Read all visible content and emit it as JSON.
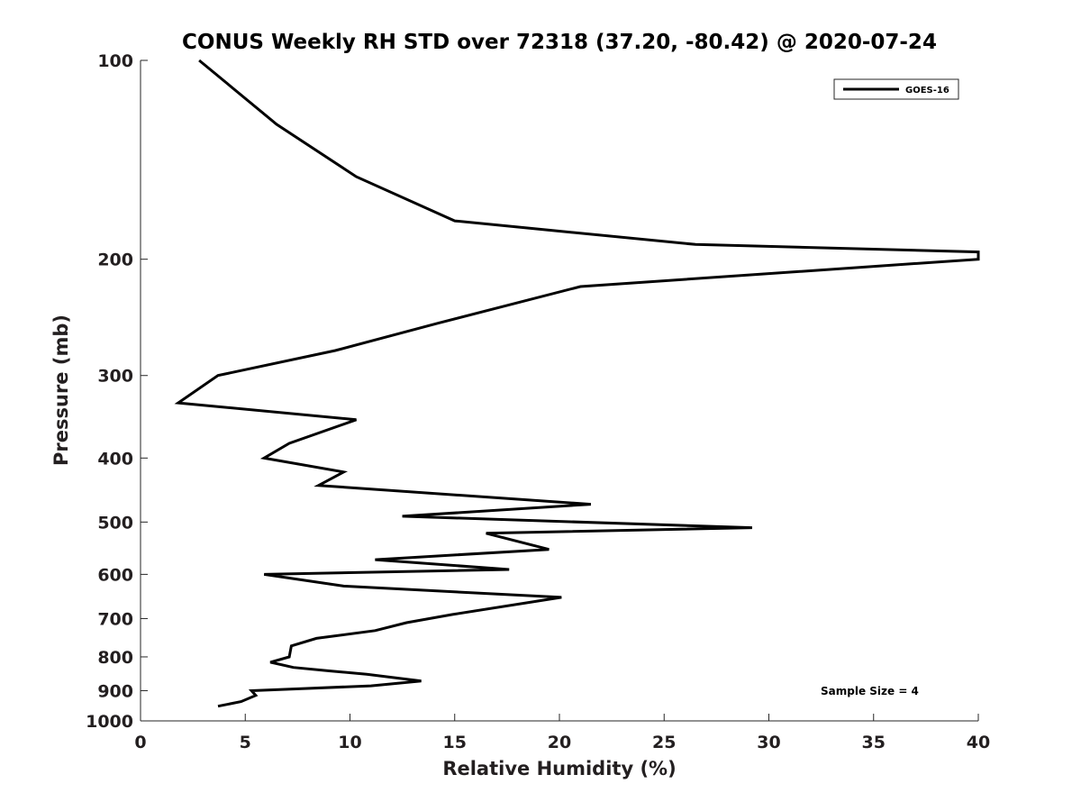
{
  "chart_data": {
    "type": "line",
    "title": "CONUS Weekly RH STD over 72318 (37.20, -80.42) @ 2020-07-24",
    "xlabel": "Relative Humidity (%)",
    "ylabel": "Pressure (mb)",
    "xlim": [
      0,
      40
    ],
    "ylim": [
      100,
      1000
    ],
    "y_scale": "log",
    "y_reversed": true,
    "grid": false,
    "legend_position": "top-right",
    "x_ticks": [
      "0",
      "5",
      "10",
      "15",
      "20",
      "25",
      "30",
      "35",
      "40"
    ],
    "y_ticks": [
      "100",
      "200",
      "300",
      "400",
      "500",
      "600",
      "700",
      "800",
      "900",
      "1000"
    ],
    "annotation": "Sample Size = 4",
    "series": [
      {
        "name": "GOES-16",
        "color": "#000000",
        "points": [
          [
            2.8,
            100
          ],
          [
            6.5,
            125
          ],
          [
            10.3,
            150
          ],
          [
            15.0,
            175
          ],
          [
            26.5,
            190
          ],
          [
            40.0,
            195
          ],
          [
            40.0,
            200
          ],
          [
            21.0,
            220
          ],
          [
            14.2,
            250
          ],
          [
            9.3,
            275
          ],
          [
            3.7,
            300
          ],
          [
            1.8,
            330
          ],
          [
            10.3,
            350
          ],
          [
            7.1,
            380
          ],
          [
            5.9,
            400
          ],
          [
            9.7,
            420
          ],
          [
            8.5,
            440
          ],
          [
            21.5,
            470
          ],
          [
            12.5,
            490
          ],
          [
            29.2,
            510
          ],
          [
            16.5,
            520
          ],
          [
            19.5,
            550
          ],
          [
            11.2,
            570
          ],
          [
            17.6,
            590
          ],
          [
            5.9,
            600
          ],
          [
            9.7,
            625
          ],
          [
            20.1,
            650
          ],
          [
            14.9,
            690
          ],
          [
            12.7,
            710
          ],
          [
            11.2,
            730
          ],
          [
            8.4,
            750
          ],
          [
            7.2,
            770
          ],
          [
            7.1,
            800
          ],
          [
            6.2,
            815
          ],
          [
            7.3,
            830
          ],
          [
            9.0,
            840
          ],
          [
            10.8,
            850
          ],
          [
            13.4,
            870
          ],
          [
            11.0,
            885
          ],
          [
            5.3,
            900
          ],
          [
            5.5,
            915
          ],
          [
            4.8,
            935
          ],
          [
            3.7,
            950
          ]
        ]
      }
    ]
  }
}
